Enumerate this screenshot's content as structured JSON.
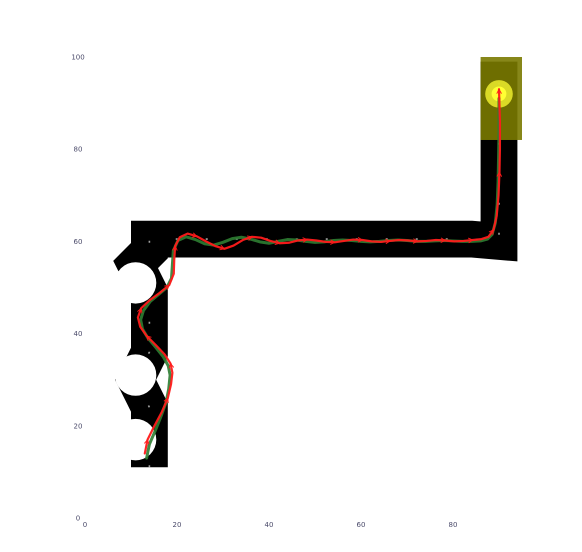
{
  "chart_data": {
    "type": "line",
    "title": "",
    "xlabel": "",
    "ylabel": "",
    "xlim": [
      0,
      100
    ],
    "ylim": [
      0,
      100
    ],
    "grid": false,
    "x_ticks": [
      "0",
      "20",
      "40",
      "60",
      "80"
    ],
    "y_ticks": [
      "0",
      "20",
      "40",
      "60",
      "80",
      "100"
    ],
    "track": {
      "width": 8,
      "color": "#000000",
      "tile_line_color": "#c8c8c8",
      "corridor": [
        [
          14,
          11
        ],
        [
          14,
          24
        ],
        [
          11,
          30
        ],
        [
          14,
          36
        ],
        [
          14,
          49
        ],
        [
          11,
          55
        ],
        [
          14,
          58
        ],
        [
          14,
          60.5
        ],
        [
          84,
          60.5
        ],
        [
          90,
          60
        ],
        [
          90,
          99
        ]
      ],
      "notches": [
        {
          "cx": 11,
          "cy": 17,
          "r": 4.5
        },
        {
          "cx": 11,
          "cy": 31,
          "r": 4.5
        },
        {
          "cx": 11,
          "cy": 51,
          "r": 4.5
        }
      ]
    },
    "goal": {
      "x": 90,
      "y": 92,
      "color": "#ffff33",
      "area_color": "#7a7a00",
      "area_x": [
        86,
        95
      ],
      "area_y": [
        82,
        100
      ]
    },
    "series": [
      {
        "color": "#2e7d32",
        "x": [
          13.4,
          14.0,
          15.3,
          16.5,
          17.6,
          18.2,
          18.5,
          18.1,
          17.0,
          15.4,
          13.7,
          12.5,
          12.1,
          12.7,
          14.2,
          16.0,
          17.8,
          18.8,
          19.0,
          19.2,
          20.2,
          22.0,
          24.0,
          26.0,
          28.0,
          30.0,
          32.0,
          34.0,
          36.0,
          38.0,
          40.0,
          42.0,
          44.0,
          46.0,
          48.0,
          50.0,
          52.0,
          54.0,
          56.0,
          58.0,
          60.0,
          62.0,
          64.0,
          66.0,
          68.0,
          70.0,
          72.0,
          74.0,
          76.0,
          78.0,
          80.0,
          82.0,
          84.0,
          86.0,
          87.5,
          88.5,
          89.2,
          89.6,
          89.8,
          89.9,
          90.0,
          90.0
        ],
        "y": [
          13.0,
          16.0,
          19.0,
          22.0,
          25.0,
          28.0,
          31.0,
          33.0,
          35.0,
          37.0,
          39.0,
          41.0,
          43.0,
          45.0,
          47.0,
          48.5,
          50.0,
          52.0,
          55.0,
          58.0,
          60.2,
          61.0,
          60.4,
          59.5,
          59.2,
          59.8,
          60.6,
          60.9,
          60.5,
          59.9,
          59.6,
          60.0,
          60.4,
          60.3,
          60.0,
          59.8,
          59.9,
          60.2,
          60.3,
          60.2,
          60.0,
          59.9,
          60.0,
          60.2,
          60.3,
          60.2,
          60.0,
          60.0,
          60.1,
          60.2,
          60.1,
          60.0,
          60.0,
          60.1,
          60.5,
          61.5,
          64.0,
          68.0,
          73.0,
          78.0,
          84.0,
          91.0
        ]
      },
      {
        "color": "#ff1a1a",
        "x": [
          13.0,
          13.6,
          15.1,
          16.7,
          18.0,
          18.7,
          19.0,
          18.6,
          17.3,
          15.4,
          13.4,
          12.0,
          11.5,
          12.2,
          14.0,
          16.2,
          18.3,
          19.3,
          19.4,
          19.6,
          20.6,
          22.3,
          24.3,
          26.3,
          28.3,
          30.3,
          32.3,
          34.3,
          36.3,
          38.3,
          40.3,
          42.3,
          44.3,
          46.3,
          48.3,
          50.3,
          52.3,
          54.3,
          56.3,
          58.3,
          60.3,
          62.3,
          64.3,
          66.3,
          68.3,
          70.3,
          72.3,
          74.3,
          76.3,
          78.3,
          80.3,
          82.3,
          84.3,
          86.2,
          87.7,
          88.8,
          89.5,
          89.9,
          90.1,
          90.2,
          90.2,
          90.0
        ],
        "y": [
          14.0,
          17.0,
          20.0,
          23.0,
          26.0,
          29.0,
          31.5,
          33.5,
          35.5,
          37.5,
          39.5,
          41.5,
          43.5,
          45.5,
          47.2,
          48.8,
          50.5,
          53.0,
          56.0,
          59.0,
          60.9,
          61.7,
          61.1,
          60.0,
          59.0,
          58.4,
          59.1,
          60.3,
          61.0,
          60.8,
          60.1,
          59.6,
          59.7,
          60.2,
          60.4,
          60.2,
          59.9,
          59.8,
          60.1,
          60.4,
          60.3,
          60.0,
          59.9,
          60.1,
          60.3,
          60.2,
          60.0,
          60.1,
          60.3,
          60.2,
          60.0,
          60.1,
          60.3,
          60.5,
          61.0,
          62.5,
          65.5,
          70.0,
          75.0,
          80.0,
          86.0,
          93.0
        ]
      }
    ]
  }
}
